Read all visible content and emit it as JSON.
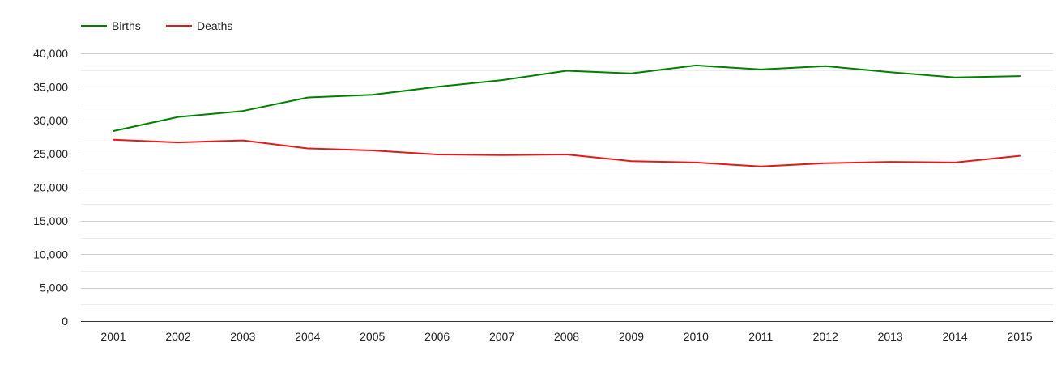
{
  "chart_data": {
    "type": "line",
    "title": "",
    "xlabel": "",
    "ylabel": "",
    "x": [
      "2001",
      "2002",
      "2003",
      "2004",
      "2005",
      "2006",
      "2007",
      "2008",
      "2009",
      "2010",
      "2011",
      "2012",
      "2013",
      "2014",
      "2015"
    ],
    "ylim": [
      0,
      40000
    ],
    "yticks": [
      0,
      5000,
      10000,
      15000,
      20000,
      25000,
      30000,
      35000,
      40000
    ],
    "ytick_labels": [
      "0",
      "5,000",
      "10,000",
      "15,000",
      "20,000",
      "25,000",
      "30,000",
      "35,000",
      "40,000"
    ],
    "grid": true,
    "legend_position": "top-left",
    "series": [
      {
        "name": "Births",
        "color": "#008000",
        "values": [
          28400,
          30500,
          31400,
          33400,
          33800,
          35000,
          36000,
          37400,
          37000,
          38200,
          37600,
          38100,
          37200,
          36400,
          36600
        ]
      },
      {
        "name": "Deaths",
        "color": "#e01b1b",
        "values": [
          27100,
          26700,
          27000,
          25800,
          25500,
          24900,
          24800,
          24900,
          23900,
          23700,
          23100,
          23600,
          23800,
          23700,
          24700
        ]
      }
    ]
  }
}
